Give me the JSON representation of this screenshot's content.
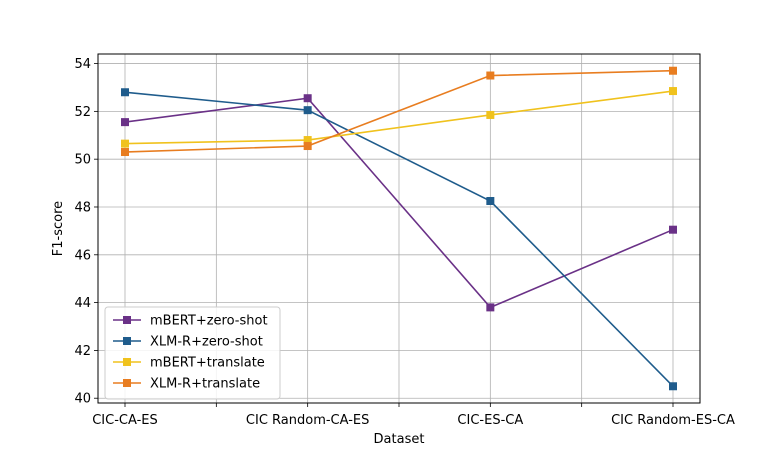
{
  "chart_data": {
    "type": "line",
    "title": "",
    "xlabel": "Dataset",
    "ylabel": "F1-score",
    "categories": [
      "CIC-CA-ES",
      "CIC Random-CA-ES",
      "CIC-ES-CA",
      "CIC Random-ES-CA"
    ],
    "ylim": [
      39.8,
      54.4
    ],
    "yticks": [
      40,
      42,
      44,
      46,
      48,
      50,
      52,
      54
    ],
    "grid": true,
    "legend_position": "lower-left",
    "series": [
      {
        "name": "mBERT+zero-shot",
        "color": "#6a3187",
        "values": [
          51.55,
          52.55,
          43.8,
          47.05
        ]
      },
      {
        "name": "XLM-R+zero-shot",
        "color": "#1f5c8c",
        "values": [
          52.8,
          52.05,
          48.25,
          40.5
        ]
      },
      {
        "name": "mBERT+translate",
        "color": "#f0c21d",
        "values": [
          50.65,
          50.8,
          51.85,
          52.85
        ]
      },
      {
        "name": "XLM-R+translate",
        "color": "#e87d20",
        "values": [
          50.3,
          50.55,
          53.5,
          53.7
        ]
      }
    ]
  }
}
